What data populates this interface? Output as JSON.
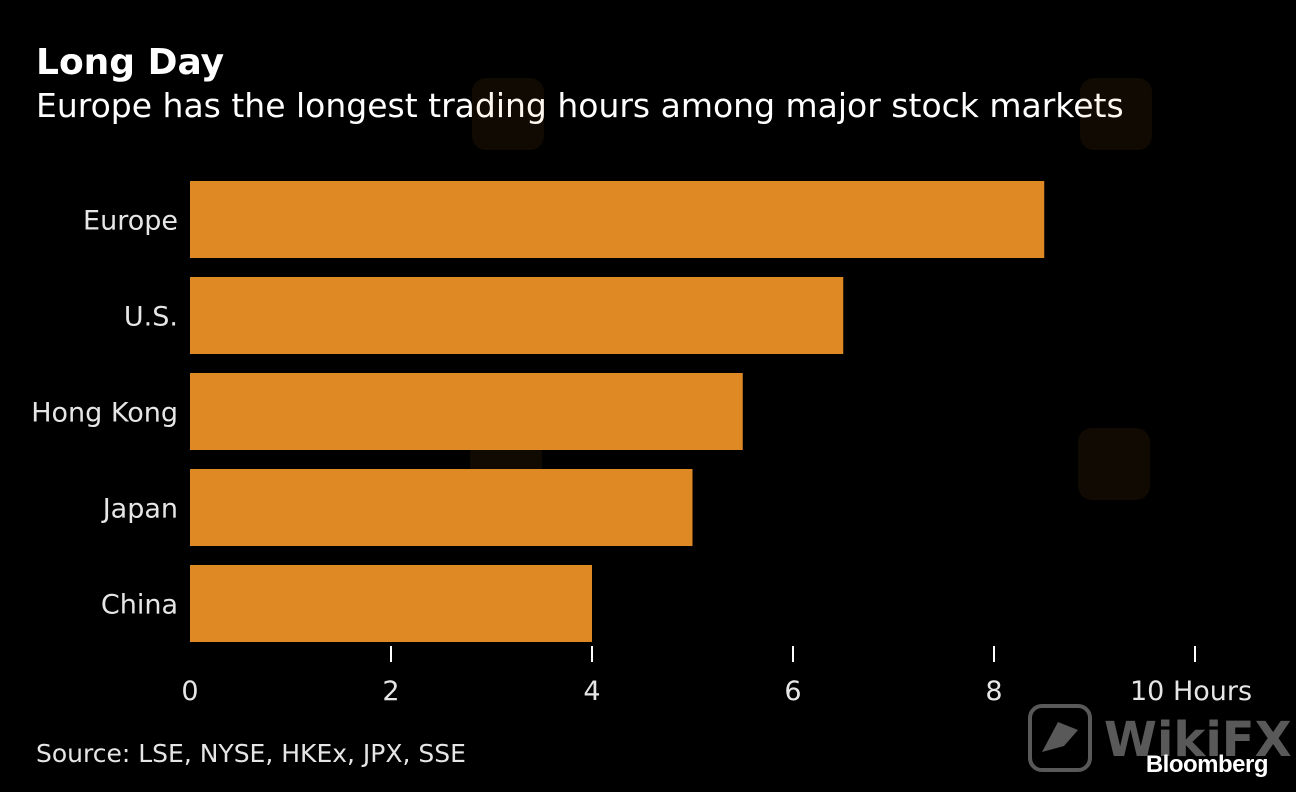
{
  "header": {
    "title": "Long Day",
    "subtitle": "Europe has the longest trading hours among major stock markets"
  },
  "footer": {
    "source": "Source: LSE, NYSE, HKEx, JPX, SSE",
    "brand": "Bloomberg"
  },
  "watermark": {
    "text": "WikiFX",
    "icon": "wikifx-eagle-logo-icon"
  },
  "colors": {
    "background": "#000000",
    "bar": "#de8923",
    "text": "#ffffff"
  },
  "chart_data": {
    "type": "bar",
    "orientation": "horizontal",
    "categories": [
      "Europe",
      "U.S.",
      "Hong Kong",
      "Japan",
      "China"
    ],
    "values": [
      8.5,
      6.5,
      5.5,
      5,
      4
    ],
    "xlim": [
      0,
      10
    ],
    "xticks": [
      0,
      2,
      4,
      6,
      8,
      10
    ],
    "xtick_labels": [
      "0",
      "2",
      "4",
      "6",
      "8",
      "10 Hours"
    ],
    "grid": false,
    "legend": "none"
  }
}
